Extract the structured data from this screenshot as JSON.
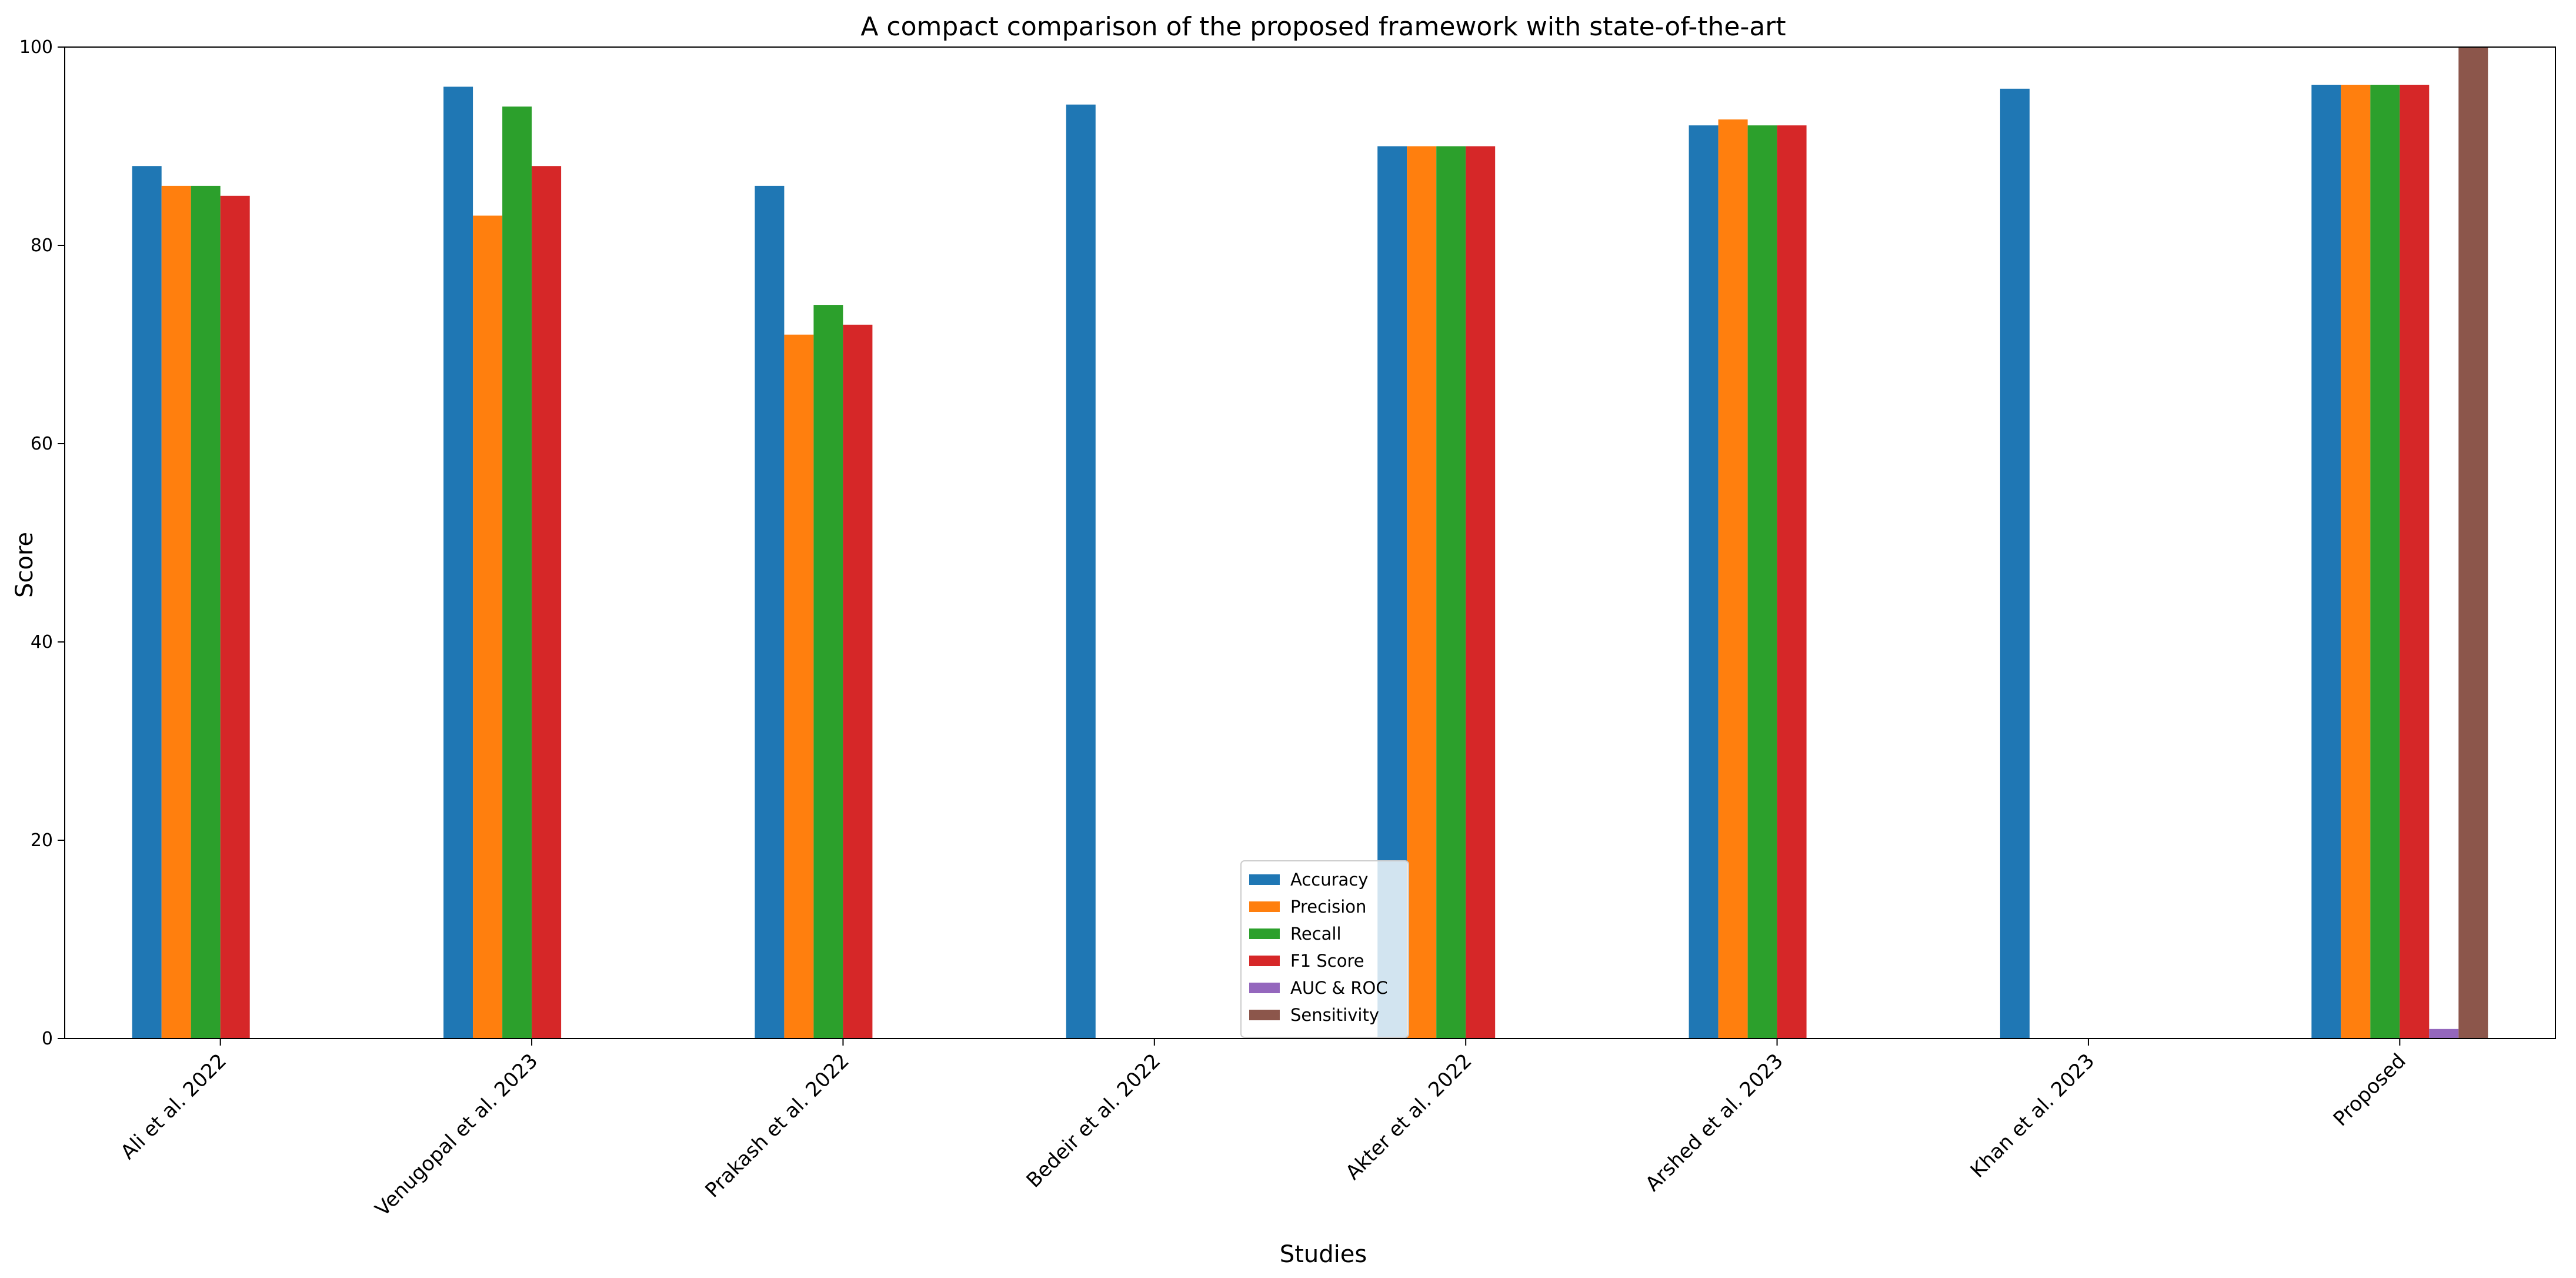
{
  "chart_data": {
    "type": "bar",
    "title": "A compact comparison of the proposed framework with state-of-the-art",
    "xlabel": "Studies",
    "ylabel": "Score",
    "ylim": [
      0,
      100
    ],
    "yticks": [
      "0",
      "20",
      "40",
      "60",
      "80",
      "100"
    ],
    "categories": [
      "Ali et al. 2022",
      "Venugopal et al. 2023",
      "Prakash et al. 2022",
      "Bedeir et al. 2022",
      "Akter et al. 2022",
      "Arshed et al. 2023",
      "Khan et al. 2023",
      "Proposed"
    ],
    "series": [
      {
        "name": "Accuracy",
        "color": "#1f77b4",
        "values": [
          88,
          96,
          86,
          94.2,
          90,
          92.1,
          95.8,
          96.2
        ]
      },
      {
        "name": "Precision",
        "color": "#ff7f0e",
        "values": [
          86,
          83,
          71,
          null,
          90,
          92.7,
          null,
          96.2
        ]
      },
      {
        "name": "Recall",
        "color": "#2ca02c",
        "values": [
          86,
          94,
          74,
          null,
          90,
          92.1,
          null,
          96.2
        ]
      },
      {
        "name": "F1 Score",
        "color": "#d62728",
        "values": [
          85,
          88,
          72,
          null,
          90,
          92.1,
          null,
          96.2
        ]
      },
      {
        "name": "AUC & ROC",
        "color": "#9467bd",
        "values": [
          null,
          null,
          null,
          null,
          null,
          null,
          null,
          0.96
        ]
      },
      {
        "name": "Sensitivity",
        "color": "#8c564b",
        "values": [
          null,
          null,
          null,
          null,
          null,
          null,
          null,
          100
        ]
      }
    ],
    "grid": false,
    "legend_position": "lower center"
  }
}
